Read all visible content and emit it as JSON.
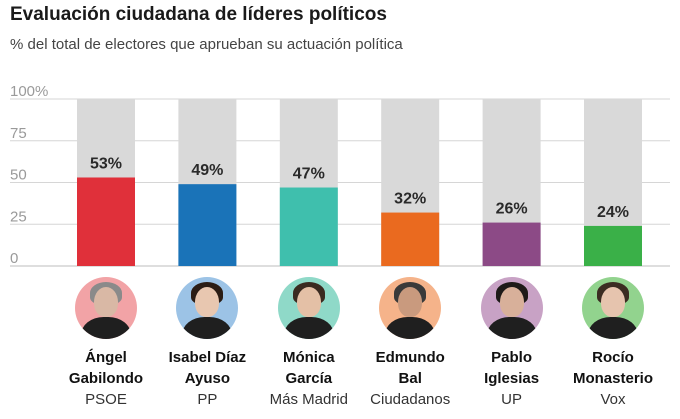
{
  "title": "Evaluación ciudadana de líderes políticos",
  "subtitle": "% del total de electores que aprueban su actuación política",
  "chart_data": {
    "type": "bar",
    "categories": [
      "Ángel Gabilondo",
      "Isabel Díaz Ayuso",
      "Mónica García",
      "Edmundo Bal",
      "Pablo Iglesias",
      "Rocío Monasterio"
    ],
    "values": [
      53,
      49,
      47,
      32,
      26,
      24
    ],
    "value_labels": [
      "53%",
      "49%",
      "47%",
      "32%",
      "26%",
      "24%"
    ],
    "ylim": [
      0,
      100
    ],
    "yticks": [
      0,
      25,
      50,
      75,
      100
    ],
    "ytick_labels": [
      "0",
      "25",
      "50",
      "75",
      "100%"
    ],
    "background_color": "#d9d9d9",
    "colors": [
      "#e0303a",
      "#1a73b8",
      "#3fbfad",
      "#ea6a1f",
      "#8c4a86",
      "#3ab048"
    ]
  },
  "leaders": [
    {
      "first": "Ángel",
      "last": "Gabilondo",
      "party": "PSOE",
      "ring": "#f2a3a6",
      "skin": "#d9b8a5",
      "hair": "#8a8a8a",
      "icon": "person-icon"
    },
    {
      "first": "Isabel Díaz",
      "last": "Ayuso",
      "party": "PP",
      "ring": "#9cc3e6",
      "skin": "#e8c7b0",
      "hair": "#2b1d15",
      "icon": "person-icon"
    },
    {
      "first": "Mónica",
      "last": "García",
      "party": "Más Madrid",
      "ring": "#8fd9c8",
      "skin": "#e4c0a6",
      "hair": "#3a2a20",
      "icon": "person-icon"
    },
    {
      "first": "Edmundo",
      "last": "Bal",
      "party": "Ciudadanos",
      "ring": "#f5b38a",
      "skin": "#c99a7e",
      "hair": "#3a3a3a",
      "icon": "person-icon"
    },
    {
      "first": "Pablo",
      "last": "Iglesias",
      "party": "UP",
      "ring": "#c8a2c5",
      "skin": "#d8b09a",
      "hair": "#1e1a18",
      "icon": "person-icon"
    },
    {
      "first": "Rocío",
      "last": "Monasterio",
      "party": "Vox",
      "ring": "#92d38e",
      "skin": "#e6c4ae",
      "hair": "#3b2c22",
      "icon": "person-icon"
    }
  ]
}
